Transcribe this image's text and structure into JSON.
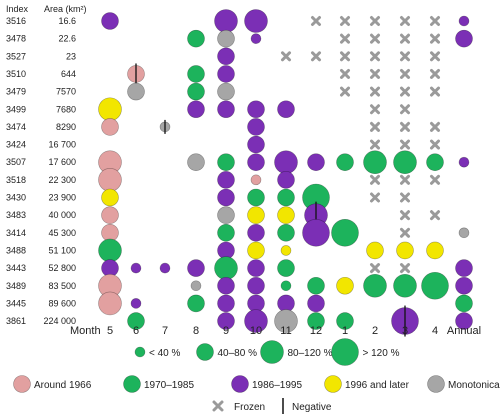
{
  "chart_data": {
    "type": "scatter",
    "title": "",
    "header": {
      "index_label": "Index",
      "area_label": "Area (km²)"
    },
    "x_axis_label": "Month",
    "columns": [
      "5",
      "6",
      "7",
      "8",
      "9",
      "10",
      "11",
      "12",
      "1",
      "2",
      "3",
      "4",
      "Annual"
    ],
    "rows": [
      {
        "index": "3516",
        "area": "16.6"
      },
      {
        "index": "3478",
        "area": "22.6"
      },
      {
        "index": "3527",
        "area": "23"
      },
      {
        "index": "3510",
        "area": "644"
      },
      {
        "index": "3479",
        "area": "7570"
      },
      {
        "index": "3499",
        "area": "7680"
      },
      {
        "index": "3474",
        "area": "8290"
      },
      {
        "index": "3424",
        "area": "16 700"
      },
      {
        "index": "3507",
        "area": "17 600"
      },
      {
        "index": "3518",
        "area": "22 300"
      },
      {
        "index": "3430",
        "area": "23 900"
      },
      {
        "index": "3483",
        "area": "40 000"
      },
      {
        "index": "3414",
        "area": "45 300"
      },
      {
        "index": "3488",
        "area": "51 100"
      },
      {
        "index": "3443",
        "area": "52 800"
      },
      {
        "index": "3489",
        "area": "83 500"
      },
      {
        "index": "3445",
        "area": "89 600"
      },
      {
        "index": "3861",
        "area": "224 000"
      }
    ],
    "size_classes": [
      {
        "key": "s1",
        "label": "< 40 %"
      },
      {
        "key": "s2",
        "label": "40–80 %"
      },
      {
        "key": "s3",
        "label": "80–120 %"
      },
      {
        "key": "s4",
        "label": "> 120 %"
      }
    ],
    "categories": [
      {
        "key": "A",
        "label": "Around 1966",
        "color": "#e2a0a0"
      },
      {
        "key": "B",
        "label": "1970–1985",
        "color": "#1db35c"
      },
      {
        "key": "C",
        "label": "1986–1995",
        "color": "#7b2fb5"
      },
      {
        "key": "D",
        "label": "1996 and later",
        "color": "#f2e600"
      },
      {
        "key": "E",
        "label": "Monotonical",
        "color": "#a6a6a6"
      }
    ],
    "frozen_label": "Frozen",
    "negative_label": "Negative",
    "points": [
      {
        "r": 0,
        "c": 0,
        "cat": "C",
        "s": 1
      },
      {
        "r": 0,
        "c": 4,
        "cat": "C",
        "s": 2
      },
      {
        "r": 0,
        "c": 5,
        "cat": "C",
        "s": 2
      },
      {
        "r": 0,
        "c": 7,
        "frozen": true
      },
      {
        "r": 0,
        "c": 8,
        "frozen": true
      },
      {
        "r": 0,
        "c": 9,
        "frozen": true
      },
      {
        "r": 0,
        "c": 10,
        "frozen": true
      },
      {
        "r": 0,
        "c": 11,
        "frozen": true
      },
      {
        "r": 0,
        "c": 12,
        "cat": "C",
        "s": 0
      },
      {
        "r": 1,
        "c": 3,
        "cat": "B",
        "s": 1
      },
      {
        "r": 1,
        "c": 4,
        "cat": "E",
        "s": 1
      },
      {
        "r": 1,
        "c": 5,
        "cat": "C",
        "s": 0
      },
      {
        "r": 1,
        "c": 8,
        "frozen": true
      },
      {
        "r": 1,
        "c": 9,
        "frozen": true
      },
      {
        "r": 1,
        "c": 10,
        "frozen": true
      },
      {
        "r": 1,
        "c": 11,
        "frozen": true
      },
      {
        "r": 1,
        "c": 12,
        "cat": "C",
        "s": 1
      },
      {
        "r": 2,
        "c": 4,
        "cat": "C",
        "s": 1
      },
      {
        "r": 2,
        "c": 6,
        "frozen": true
      },
      {
        "r": 2,
        "c": 7,
        "frozen": true
      },
      {
        "r": 2,
        "c": 8,
        "frozen": true
      },
      {
        "r": 2,
        "c": 9,
        "frozen": true
      },
      {
        "r": 2,
        "c": 10,
        "frozen": true
      },
      {
        "r": 2,
        "c": 11,
        "frozen": true
      },
      {
        "r": 3,
        "c": 1,
        "cat": "A",
        "s": 1,
        "neg": true
      },
      {
        "r": 3,
        "c": 3,
        "cat": "B",
        "s": 1
      },
      {
        "r": 3,
        "c": 4,
        "cat": "C",
        "s": 1
      },
      {
        "r": 3,
        "c": 8,
        "frozen": true
      },
      {
        "r": 3,
        "c": 9,
        "frozen": true
      },
      {
        "r": 3,
        "c": 10,
        "frozen": true
      },
      {
        "r": 3,
        "c": 11,
        "frozen": true
      },
      {
        "r": 4,
        "c": 1,
        "cat": "E",
        "s": 1
      },
      {
        "r": 4,
        "c": 3,
        "cat": "B",
        "s": 1
      },
      {
        "r": 4,
        "c": 4,
        "cat": "E",
        "s": 1
      },
      {
        "r": 4,
        "c": 8,
        "frozen": true
      },
      {
        "r": 4,
        "c": 9,
        "frozen": true
      },
      {
        "r": 4,
        "c": 10,
        "frozen": true
      },
      {
        "r": 4,
        "c": 11,
        "frozen": true
      },
      {
        "r": 5,
        "c": 0,
        "cat": "D",
        "s": 2
      },
      {
        "r": 5,
        "c": 3,
        "cat": "C",
        "s": 1
      },
      {
        "r": 5,
        "c": 4,
        "cat": "C",
        "s": 1
      },
      {
        "r": 5,
        "c": 5,
        "cat": "C",
        "s": 1
      },
      {
        "r": 5,
        "c": 6,
        "cat": "C",
        "s": 1
      },
      {
        "r": 5,
        "c": 9,
        "frozen": true
      },
      {
        "r": 5,
        "c": 10,
        "frozen": true
      },
      {
        "r": 6,
        "c": 0,
        "cat": "A",
        "s": 1
      },
      {
        "r": 6,
        "c": 2,
        "cat": "E",
        "s": 0,
        "neg": true
      },
      {
        "r": 6,
        "c": 5,
        "cat": "C",
        "s": 1
      },
      {
        "r": 6,
        "c": 9,
        "frozen": true
      },
      {
        "r": 6,
        "c": 10,
        "frozen": true
      },
      {
        "r": 6,
        "c": 11,
        "frozen": true
      },
      {
        "r": 7,
        "c": 5,
        "cat": "C",
        "s": 1
      },
      {
        "r": 7,
        "c": 9,
        "frozen": true
      },
      {
        "r": 7,
        "c": 10,
        "frozen": true
      },
      {
        "r": 7,
        "c": 11,
        "frozen": true
      },
      {
        "r": 8,
        "c": 0,
        "cat": "A",
        "s": 2
      },
      {
        "r": 8,
        "c": 3,
        "cat": "E",
        "s": 1
      },
      {
        "r": 8,
        "c": 4,
        "cat": "B",
        "s": 1
      },
      {
        "r": 8,
        "c": 5,
        "cat": "C",
        "s": 1
      },
      {
        "r": 8,
        "c": 6,
        "cat": "C",
        "s": 2
      },
      {
        "r": 8,
        "c": 7,
        "cat": "C",
        "s": 1
      },
      {
        "r": 8,
        "c": 8,
        "cat": "B",
        "s": 1
      },
      {
        "r": 8,
        "c": 9,
        "cat": "B",
        "s": 2
      },
      {
        "r": 8,
        "c": 10,
        "cat": "B",
        "s": 2
      },
      {
        "r": 8,
        "c": 11,
        "cat": "B",
        "s": 1
      },
      {
        "r": 8,
        "c": 12,
        "cat": "C",
        "s": 0
      },
      {
        "r": 9,
        "c": 0,
        "cat": "A",
        "s": 2
      },
      {
        "r": 9,
        "c": 4,
        "cat": "C",
        "s": 1
      },
      {
        "r": 9,
        "c": 5,
        "cat": "A",
        "s": 0
      },
      {
        "r": 9,
        "c": 6,
        "cat": "C",
        "s": 1
      },
      {
        "r": 9,
        "c": 9,
        "frozen": true
      },
      {
        "r": 9,
        "c": 10,
        "frozen": true
      },
      {
        "r": 9,
        "c": 11,
        "frozen": true
      },
      {
        "r": 10,
        "c": 0,
        "cat": "D",
        "s": 1
      },
      {
        "r": 10,
        "c": 4,
        "cat": "C",
        "s": 1
      },
      {
        "r": 10,
        "c": 5,
        "cat": "B",
        "s": 1
      },
      {
        "r": 10,
        "c": 6,
        "cat": "B",
        "s": 1
      },
      {
        "r": 10,
        "c": 7,
        "cat": "B",
        "s": 3
      },
      {
        "r": 10,
        "c": 9,
        "frozen": true
      },
      {
        "r": 10,
        "c": 10,
        "frozen": true
      },
      {
        "r": 11,
        "c": 0,
        "cat": "A",
        "s": 1
      },
      {
        "r": 11,
        "c": 4,
        "cat": "E",
        "s": 1
      },
      {
        "r": 11,
        "c": 5,
        "cat": "D",
        "s": 1
      },
      {
        "r": 11,
        "c": 6,
        "cat": "D",
        "s": 1
      },
      {
        "r": 11,
        "c": 7,
        "cat": "C",
        "s": 2,
        "neg": true
      },
      {
        "r": 11,
        "c": 10,
        "frozen": true
      },
      {
        "r": 11,
        "c": 11,
        "frozen": true
      },
      {
        "r": 12,
        "c": 0,
        "cat": "A",
        "s": 1
      },
      {
        "r": 12,
        "c": 4,
        "cat": "B",
        "s": 1
      },
      {
        "r": 12,
        "c": 5,
        "cat": "C",
        "s": 1
      },
      {
        "r": 12,
        "c": 6,
        "cat": "B",
        "s": 1
      },
      {
        "r": 12,
        "c": 7,
        "cat": "C",
        "s": 3
      },
      {
        "r": 12,
        "c": 8,
        "cat": "B",
        "s": 3
      },
      {
        "r": 12,
        "c": 10,
        "frozen": true
      },
      {
        "r": 12,
        "c": 12,
        "cat": "E",
        "s": 0
      },
      {
        "r": 13,
        "c": 0,
        "cat": "B",
        "s": 2
      },
      {
        "r": 13,
        "c": 4,
        "cat": "C",
        "s": 1
      },
      {
        "r": 13,
        "c": 5,
        "cat": "D",
        "s": 1
      },
      {
        "r": 13,
        "c": 6,
        "cat": "D",
        "s": 0
      },
      {
        "r": 13,
        "c": 9,
        "cat": "D",
        "s": 1
      },
      {
        "r": 13,
        "c": 10,
        "cat": "D",
        "s": 1
      },
      {
        "r": 13,
        "c": 11,
        "cat": "D",
        "s": 1
      },
      {
        "r": 14,
        "c": 0,
        "cat": "C",
        "s": 1
      },
      {
        "r": 14,
        "c": 1,
        "cat": "C",
        "s": 0
      },
      {
        "r": 14,
        "c": 2,
        "cat": "C",
        "s": 0
      },
      {
        "r": 14,
        "c": 3,
        "cat": "C",
        "s": 1
      },
      {
        "r": 14,
        "c": 4,
        "cat": "B",
        "s": 2
      },
      {
        "r": 14,
        "c": 5,
        "cat": "C",
        "s": 1
      },
      {
        "r": 14,
        "c": 6,
        "cat": "B",
        "s": 1
      },
      {
        "r": 14,
        "c": 9,
        "frozen": true
      },
      {
        "r": 14,
        "c": 10,
        "frozen": true
      },
      {
        "r": 14,
        "c": 12,
        "cat": "C",
        "s": 1
      },
      {
        "r": 15,
        "c": 0,
        "cat": "A",
        "s": 2
      },
      {
        "r": 15,
        "c": 3,
        "cat": "E",
        "s": 0
      },
      {
        "r": 15,
        "c": 4,
        "cat": "C",
        "s": 1
      },
      {
        "r": 15,
        "c": 5,
        "cat": "C",
        "s": 1
      },
      {
        "r": 15,
        "c": 6,
        "cat": "B",
        "s": 0
      },
      {
        "r": 15,
        "c": 7,
        "cat": "B",
        "s": 1
      },
      {
        "r": 15,
        "c": 8,
        "cat": "D",
        "s": 1
      },
      {
        "r": 15,
        "c": 9,
        "cat": "B",
        "s": 2
      },
      {
        "r": 15,
        "c": 10,
        "cat": "B",
        "s": 2
      },
      {
        "r": 15,
        "c": 11,
        "cat": "B",
        "s": 3
      },
      {
        "r": 15,
        "c": 12,
        "cat": "C",
        "s": 1
      },
      {
        "r": 16,
        "c": 0,
        "cat": "A",
        "s": 2
      },
      {
        "r": 16,
        "c": 1,
        "cat": "C",
        "s": 0
      },
      {
        "r": 16,
        "c": 3,
        "cat": "B",
        "s": 1
      },
      {
        "r": 16,
        "c": 4,
        "cat": "C",
        "s": 1
      },
      {
        "r": 16,
        "c": 5,
        "cat": "C",
        "s": 1
      },
      {
        "r": 16,
        "c": 6,
        "cat": "C",
        "s": 1
      },
      {
        "r": 16,
        "c": 7,
        "cat": "C",
        "s": 1
      },
      {
        "r": 16,
        "c": 12,
        "cat": "B",
        "s": 1
      },
      {
        "r": 17,
        "c": 1,
        "cat": "B",
        "s": 1
      },
      {
        "r": 17,
        "c": 4,
        "cat": "C",
        "s": 1
      },
      {
        "r": 17,
        "c": 5,
        "cat": "C",
        "s": 2
      },
      {
        "r": 17,
        "c": 6,
        "cat": "E",
        "s": 2
      },
      {
        "r": 17,
        "c": 7,
        "cat": "B",
        "s": 1
      },
      {
        "r": 17,
        "c": 8,
        "cat": "B",
        "s": 1
      },
      {
        "r": 17,
        "c": 10,
        "cat": "C",
        "s": 3,
        "neg": true
      },
      {
        "r": 17,
        "c": 12,
        "cat": "C",
        "s": 1
      }
    ]
  }
}
